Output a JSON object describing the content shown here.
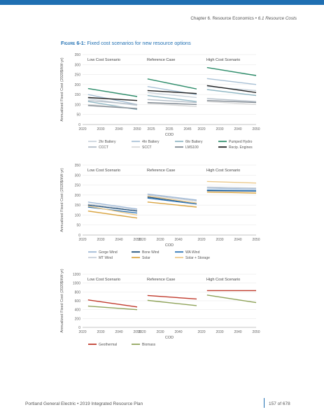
{
  "running_header": {
    "chapter": "Chapter 6. Resource Economics",
    "bullet": "•",
    "section": "6.1 Resource Costs"
  },
  "figure": {
    "number": "Figure 6-1:",
    "title": "Fixed cost scenarios for new resource options"
  },
  "footer": {
    "org": "Portland General Electric",
    "bullet": "•",
    "doc": "2019 Integrated Resource Plan",
    "page": "157 of 678"
  },
  "chart_data": [
    {
      "type": "line",
      "ylabel": "Annualized Fixed Cost (2020$/kW-yr)",
      "xlabel": "COD",
      "ylim": [
        0,
        350
      ],
      "yticks": [
        "0",
        "50",
        "100",
        "150",
        "200",
        "250",
        "300",
        "350"
      ],
      "panels": [
        {
          "title": "Low Cost Scenario",
          "xticks": [
            "2020",
            "2030",
            "2040",
            "2050"
          ],
          "x": [
            2023,
            2050
          ],
          "series": [
            {
              "name": "2hr Battery",
              "values": [
                130,
                95
              ]
            },
            {
              "name": "4hr Battery",
              "values": [
                150,
                100
              ]
            },
            {
              "name": "6hr Battery",
              "values": [
                115,
                75
              ]
            },
            {
              "name": "Pumped Hydro",
              "values": [
                180,
                140
              ]
            },
            {
              "name": "CCCT",
              "values": [
                120,
                100
              ]
            },
            {
              "name": "SCCT",
              "values": [
                100,
                80
              ]
            },
            {
              "name": "LMS100",
              "values": [
                95,
                80
              ]
            },
            {
              "name": "Recip. Engines",
              "values": [
                135,
                120
              ]
            }
          ]
        },
        {
          "title": "Reference Case",
          "xticks": [
            "2025",
            "2035",
            "2045"
          ],
          "x": [
            2023,
            2050
          ],
          "series": [
            {
              "name": "2hr Battery",
              "values": [
                160,
                135
              ]
            },
            {
              "name": "4hr Battery",
              "values": [
                190,
                150
              ]
            },
            {
              "name": "6hr Battery",
              "values": [
                145,
                115
              ]
            },
            {
              "name": "Pumped Hydro",
              "values": [
                228,
                178
              ]
            },
            {
              "name": "CCCT",
              "values": [
                125,
                110
              ]
            },
            {
              "name": "SCCT",
              "values": [
                105,
                90
              ]
            },
            {
              "name": "LMS100",
              "values": [
                110,
                100
              ]
            },
            {
              "name": "Recip. Engines",
              "values": [
                170,
                155
              ]
            }
          ]
        },
        {
          "title": "High Cost Scenario",
          "xticks": [
            "2020",
            "2030",
            "2040",
            "2050"
          ],
          "x": [
            2023,
            2050
          ],
          "series": [
            {
              "name": "2hr Battery",
              "values": [
                190,
                170
              ]
            },
            {
              "name": "4hr Battery",
              "values": [
                230,
                200
              ]
            },
            {
              "name": "6hr Battery",
              "values": [
                175,
                145
              ]
            },
            {
              "name": "Pumped Hydro",
              "values": [
                285,
                245
              ]
            },
            {
              "name": "CCCT",
              "values": [
                130,
                115
              ]
            },
            {
              "name": "SCCT",
              "values": [
                115,
                100
              ]
            },
            {
              "name": "LMS100",
              "values": [
                120,
                110
              ]
            },
            {
              "name": "Recip. Engines",
              "values": [
                195,
                160
              ]
            }
          ]
        }
      ],
      "legend": [
        {
          "name": "2hr Battery",
          "color": "#c9d3dc"
        },
        {
          "name": "4hr Battery",
          "color": "#a9c1d6"
        },
        {
          "name": "6hr Battery",
          "color": "#8fb7c4"
        },
        {
          "name": "Pumped Hydro",
          "color": "#2f8d6b"
        },
        {
          "name": "CCCT",
          "color": "#b3bdc7"
        },
        {
          "name": "SCCT",
          "color": "#d8d8d8"
        },
        {
          "name": "LMS100",
          "color": "#7f8891"
        },
        {
          "name": "Recip. Engines",
          "color": "#222222"
        }
      ]
    },
    {
      "type": "line",
      "ylabel": "Annualized Fixed Cost (2020$/kW-yr)",
      "xlabel": "COD",
      "ylim": [
        0,
        350
      ],
      "yticks": [
        "0",
        "50",
        "100",
        "150",
        "200",
        "250",
        "300",
        "350"
      ],
      "panels": [
        {
          "title": "Low Cost Scenario",
          "xticks": [
            "2020",
            "2030",
            "2040",
            "2050"
          ],
          "x": [
            2023,
            2050
          ],
          "series": [
            {
              "name": "Gorge Wind",
              "values": [
                165,
                130
              ]
            },
            {
              "name": "Bone Wind",
              "values": [
                150,
                120
              ]
            },
            {
              "name": "WA Wind",
              "values": [
                140,
                110
              ]
            },
            {
              "name": "MT Wind",
              "values": [
                155,
                125
              ]
            },
            {
              "name": "Solar",
              "values": [
                120,
                85
              ]
            },
            {
              "name": "Solar + Storage",
              "values": [
                145,
                100
              ]
            }
          ]
        },
        {
          "title": "Reference Case",
          "xticks": [
            "2020",
            "2030",
            "2040"
          ],
          "x": [
            2023,
            2050
          ],
          "series": [
            {
              "name": "Gorge Wind",
              "values": [
                205,
                175
              ]
            },
            {
              "name": "Bone Wind",
              "values": [
                190,
                160
              ]
            },
            {
              "name": "WA Wind",
              "values": [
                185,
                155
              ]
            },
            {
              "name": "MT Wind",
              "values": [
                200,
                170
              ]
            },
            {
              "name": "Solar",
              "values": [
                165,
                140
              ]
            },
            {
              "name": "Solar + Storage",
              "values": [
                195,
                160
              ]
            }
          ]
        },
        {
          "title": "High Cost Scenario",
          "xticks": [
            "2020",
            "2030",
            "2040",
            "2050"
          ],
          "x": [
            2023,
            2050
          ],
          "series": [
            {
              "name": "Gorge Wind",
              "values": [
                235,
                230
              ]
            },
            {
              "name": "Bone Wind",
              "values": [
                222,
                220
              ]
            },
            {
              "name": "WA Wind",
              "values": [
                225,
                222
              ]
            },
            {
              "name": "MT Wind",
              "values": [
                240,
                235
              ]
            },
            {
              "name": "Solar",
              "values": [
                215,
                210
              ]
            },
            {
              "name": "Solar + Storage",
              "values": [
                268,
                260
              ]
            }
          ]
        }
      ],
      "legend": [
        {
          "name": "Gorge Wind",
          "color": "#9fb8d6"
        },
        {
          "name": "Bone Wind",
          "color": "#1f4e79"
        },
        {
          "name": "WA Wind",
          "color": "#2e75b6"
        },
        {
          "name": "MT Wind",
          "color": "#c7cfd8"
        },
        {
          "name": "Solar",
          "color": "#d9a441"
        },
        {
          "name": "Solar + Storage",
          "color": "#ecc98a"
        }
      ]
    },
    {
      "type": "line",
      "ylabel": "Annualized Fixed Cost (2020$/kW-yr)",
      "xlabel": "COD",
      "ylim": [
        0,
        1200
      ],
      "yticks": [
        "0",
        "200",
        "400",
        "600",
        "800",
        "1000",
        "1200"
      ],
      "panels": [
        {
          "title": "Low Cost Scenario",
          "xticks": [
            "2020",
            "2030",
            "2040",
            "2050"
          ],
          "x": [
            2023,
            2050
          ],
          "series": [
            {
              "name": "Geothermal",
              "values": [
                620,
                460
              ]
            },
            {
              "name": "Biomass",
              "values": [
                480,
                400
              ]
            }
          ]
        },
        {
          "title": "Reference Case",
          "xticks": [
            "2020",
            "2030",
            "2040"
          ],
          "x": [
            2023,
            2050
          ],
          "series": [
            {
              "name": "Geothermal",
              "values": [
                720,
                640
              ]
            },
            {
              "name": "Biomass",
              "values": [
                610,
                490
              ]
            }
          ]
        },
        {
          "title": "High Cost Scenario",
          "xticks": [
            "2020",
            "2030",
            "2040",
            "2050"
          ],
          "x": [
            2023,
            2050
          ],
          "series": [
            {
              "name": "Geothermal",
              "values": [
                830,
                830
              ]
            },
            {
              "name": "Biomass",
              "values": [
                730,
                560
              ]
            }
          ]
        }
      ],
      "legend": [
        {
          "name": "Geothermal",
          "color": "#c0392b"
        },
        {
          "name": "Biomass",
          "color": "#8fa35a"
        }
      ]
    }
  ]
}
